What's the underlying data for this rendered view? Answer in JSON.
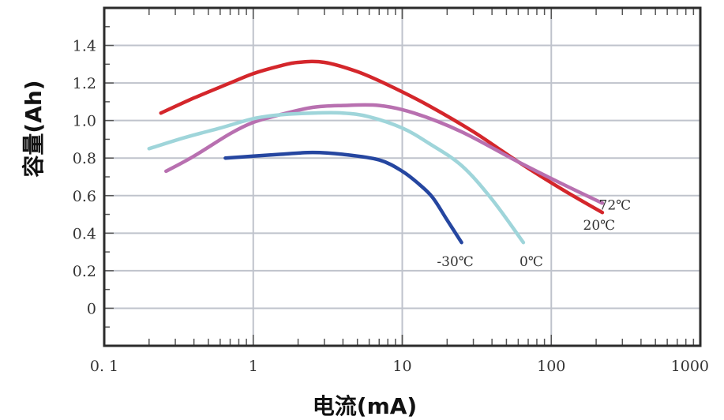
{
  "chart_data": {
    "type": "line",
    "title": "",
    "xlabel": "电流(mA)",
    "ylabel": "容量(Ah)",
    "x_scale": "log",
    "xlim": [
      0.1,
      1000
    ],
    "ylim": [
      -0.2,
      1.6
    ],
    "x_ticks": [
      "0. 1",
      "1",
      "10",
      "100",
      "1000"
    ],
    "y_ticks": [
      "1.4",
      "1.2",
      "1.0",
      "0.8",
      "0.6",
      "0.4",
      "0.2",
      "0"
    ],
    "grid": true,
    "series": [
      {
        "name": "20℃",
        "color": "#d4262b",
        "x": [
          0.24,
          0.4,
          0.7,
          1.0,
          1.5,
          2.0,
          3.0,
          5.0,
          8.0,
          15,
          30,
          60,
          120,
          220
        ],
        "y": [
          1.04,
          1.12,
          1.2,
          1.25,
          1.29,
          1.31,
          1.31,
          1.26,
          1.19,
          1.08,
          0.94,
          0.78,
          0.63,
          0.51
        ]
      },
      {
        "name": "72℃",
        "color": "#b870b0",
        "x": [
          0.26,
          0.4,
          0.7,
          1.0,
          1.5,
          2.5,
          4.0,
          7.0,
          12,
          25,
          60,
          120,
          220
        ],
        "y": [
          0.73,
          0.81,
          0.93,
          0.99,
          1.03,
          1.07,
          1.08,
          1.08,
          1.04,
          0.94,
          0.78,
          0.66,
          0.56
        ]
      },
      {
        "name": "0℃",
        "color": "#9fd5da",
        "x": [
          0.2,
          0.35,
          0.6,
          1.0,
          1.5,
          2.5,
          4.0,
          6.0,
          10,
          15,
          25,
          40,
          65
        ],
        "y": [
          0.85,
          0.91,
          0.96,
          1.01,
          1.03,
          1.04,
          1.04,
          1.02,
          0.96,
          0.88,
          0.76,
          0.58,
          0.35
        ]
      },
      {
        "name": "-30℃",
        "color": "#2546a0",
        "x": [
          0.65,
          1.0,
          1.5,
          2.5,
          4.0,
          7.0,
          10,
          13,
          16,
          20,
          25
        ],
        "y": [
          0.8,
          0.81,
          0.82,
          0.83,
          0.82,
          0.79,
          0.73,
          0.66,
          0.59,
          0.47,
          0.35
        ]
      }
    ]
  }
}
